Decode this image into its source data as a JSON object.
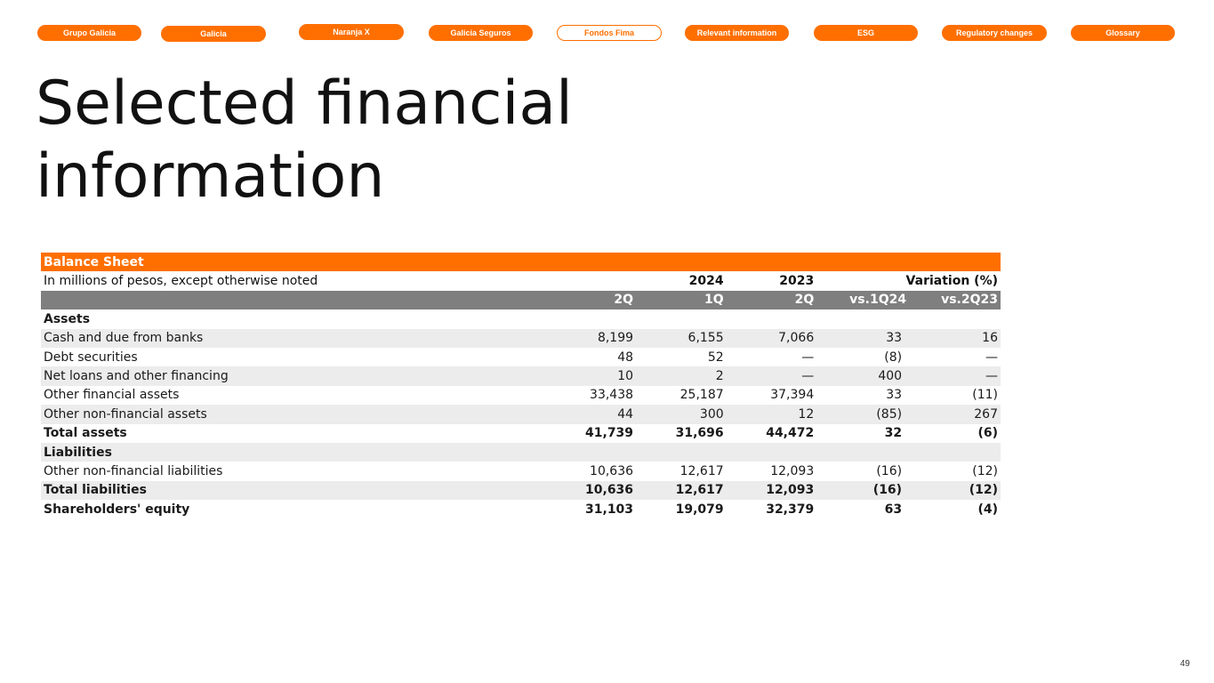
{
  "nav": {
    "tabs": [
      {
        "label": "Grupo Galicia"
      },
      {
        "label": "Galicia"
      },
      {
        "label": "Naranja X"
      },
      {
        "label": "Galicia Seguros"
      },
      {
        "label": "Fondos Fima"
      },
      {
        "label": "Relevant information"
      },
      {
        "label": "ESG"
      },
      {
        "label": "Regulatory changes"
      },
      {
        "label": "Glossary"
      }
    ]
  },
  "title": "Selected financial information",
  "table": {
    "caption": "Balance Sheet",
    "subtitle": "In millions of pesos, except otherwise noted",
    "year_2024": "2024",
    "year_2023": "2023",
    "variation_label": "Variation (%)",
    "columns": [
      "2Q",
      "1Q",
      "2Q",
      "vs.1Q24",
      "vs.2Q23"
    ],
    "rows": [
      {
        "label": "Assets",
        "values": [
          "",
          "",
          "",
          "",
          ""
        ]
      },
      {
        "label": "Cash and due from banks",
        "values": [
          "8,199",
          "6,155",
          "7,066",
          "33",
          "16"
        ]
      },
      {
        "label": "Debt securities",
        "values": [
          "48",
          "52",
          "—",
          "(8)",
          "—"
        ]
      },
      {
        "label": "Net loans and other financing",
        "values": [
          "10",
          "2",
          "—",
          "400",
          "—"
        ]
      },
      {
        "label": "Other financial assets",
        "values": [
          "33,438",
          "25,187",
          "37,394",
          "33",
          "(11)"
        ]
      },
      {
        "label": "Other non-financial assets",
        "values": [
          "44",
          "300",
          "12",
          "(85)",
          "267"
        ]
      },
      {
        "label": "Total assets",
        "values": [
          "41,739",
          "31,696",
          "44,472",
          "32",
          "(6)"
        ]
      },
      {
        "label": "Liabilities",
        "values": [
          "",
          "",
          "",
          "",
          ""
        ]
      },
      {
        "label": "Other non-financial liabilities",
        "values": [
          "10,636",
          "12,617",
          "12,093",
          "(16)",
          "(12)"
        ]
      },
      {
        "label": "Total liabilities",
        "values": [
          "10,636",
          "12,617",
          "12,093",
          "(16)",
          "(12)"
        ]
      },
      {
        "label": "Shareholders' equity",
        "values": [
          "31,103",
          "19,079",
          "32,379",
          "63",
          "(4)"
        ]
      }
    ]
  },
  "page_number": "49"
}
